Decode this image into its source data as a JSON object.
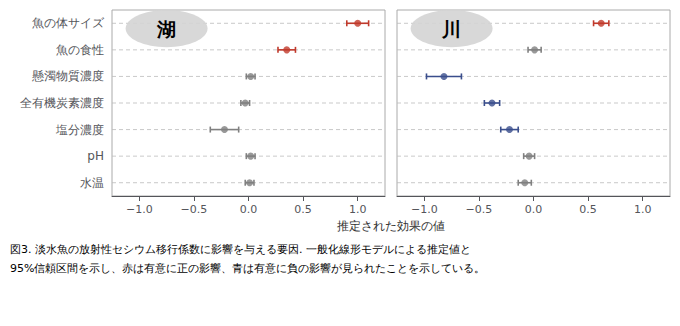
{
  "chart_data": [
    {
      "type": "errorbar",
      "title": "湖",
      "xlabel": "推定された効果の値",
      "categories": [
        "魚の体サイズ",
        "魚の食性",
        "懸濁物質濃度",
        "全有機炭素濃度",
        "塩分濃度",
        "pH",
        "水温"
      ],
      "values": [
        1.0,
        0.35,
        0.02,
        -0.03,
        -0.22,
        0.02,
        0.01
      ],
      "ci_low": [
        0.9,
        0.27,
        -0.02,
        -0.07,
        -0.35,
        -0.02,
        -0.03
      ],
      "ci_high": [
        1.1,
        0.43,
        0.06,
        0.01,
        -0.09,
        0.06,
        0.05
      ],
      "colors": [
        "#c0392b",
        "#c0392b",
        "#808080",
        "#808080",
        "#808080",
        "#808080",
        "#808080"
      ],
      "xlim": [
        -1.25,
        1.25
      ],
      "xticks": [
        {
          "value": -1.0,
          "label": "−1.0"
        },
        {
          "value": -0.5,
          "label": "−0.5"
        },
        {
          "value": 0.0,
          "label": "0.0"
        },
        0.5,
        {
          "value": 1.0,
          "label": "1.0"
        }
      ],
      "grid": true,
      "annotations": [
        "図3. 淡水魚の放射性セシウム移行係数に影響を与える要因. 一般化線形モデルによる推定値と",
        "95%信頼区間を示し、赤は有意に正の影響、青は有意に負の影響が見られたことを示している。"
      ]
    },
    {
      "type": "errorbar",
      "title": "川",
      "categories": [
        "魚の体サイズ",
        "魚の食性",
        "懸濁物質濃度",
        "全有機炭素濃度",
        "塩分濃度",
        "pH",
        "水温"
      ],
      "values": [
        0.62,
        0.01,
        -0.82,
        -0.38,
        -0.22,
        -0.04,
        -0.08
      ],
      "ci_low": [
        0.55,
        -0.05,
        -0.98,
        -0.45,
        -0.3,
        -0.09,
        -0.14
      ],
      "ci_high": [
        0.69,
        0.07,
        -0.66,
        -0.31,
        -0.14,
        0.01,
        -0.02
      ],
      "colors": [
        "#c0392b",
        "#808080",
        "#3a4e8c",
        "#3a4e8c",
        "#3a4e8c",
        "#808080",
        "#808080"
      ],
      "xlim": [
        -1.25,
        1.25
      ],
      "xticks": [
        {
          "value": -1.0,
          "label": "−1.0"
        },
        {
          "value": -0.5,
          "label": "−0.5"
        },
        {
          "value": 0.0,
          "label": "0.0"
        },
        0.5,
        {
          "value": 1.0,
          "label": "1.0"
        }
      ],
      "grid": true,
      "tick_labels": "x"
    }
  ]
}
